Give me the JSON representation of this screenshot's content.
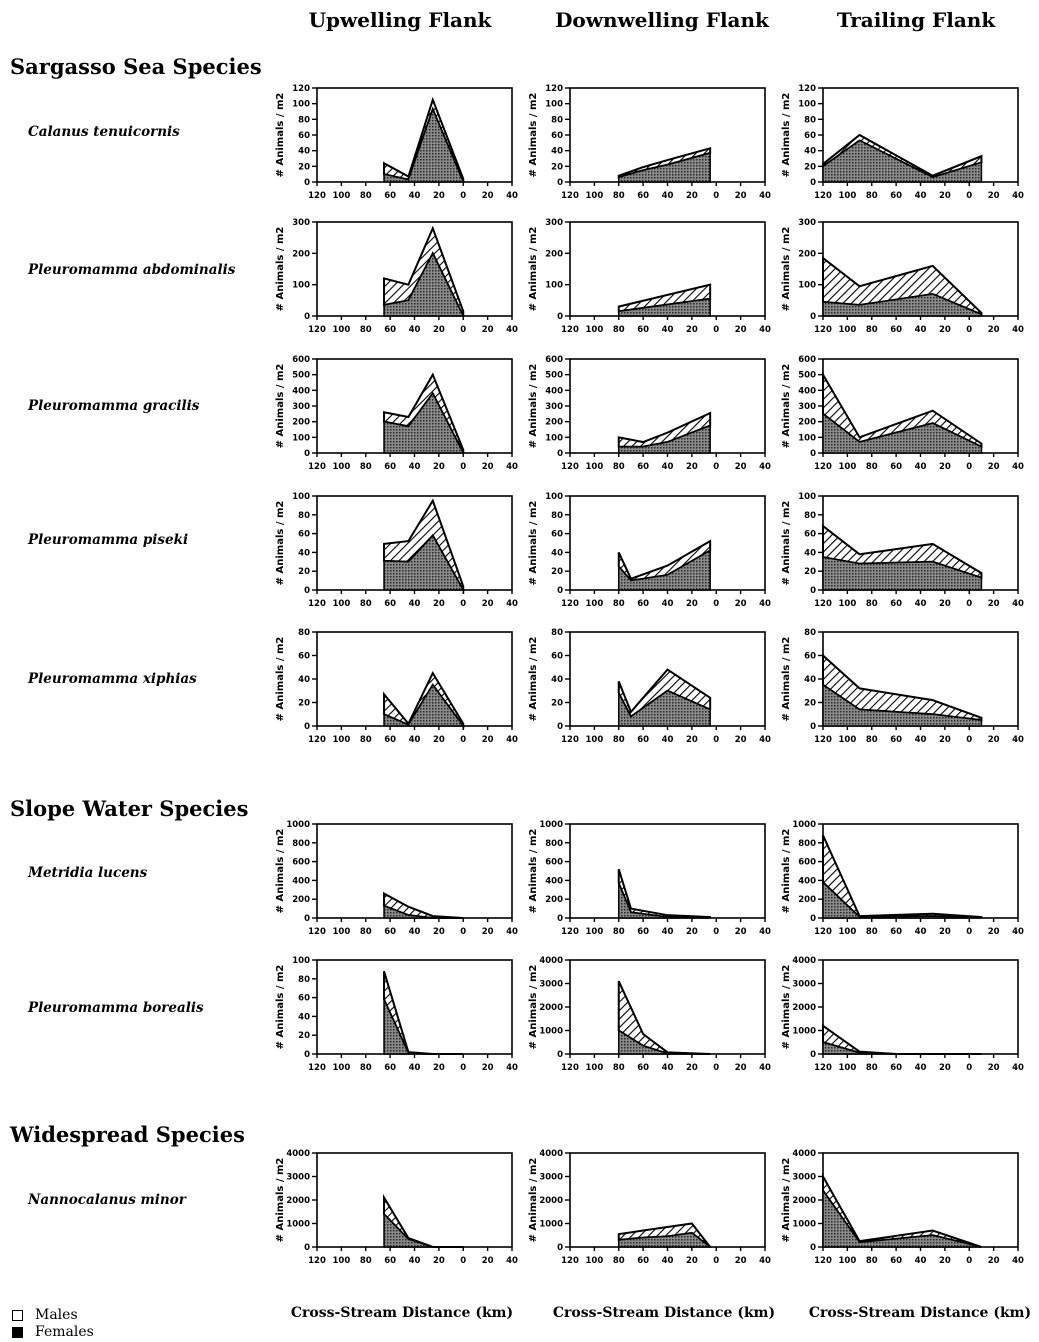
{
  "column_headers": [
    "Upwelling Flank",
    "Downwelling Flank",
    "Trailing Flank"
  ],
  "groups": [
    "Sargasso Sea Species",
    "Slope Water Species",
    "Widespread Species"
  ],
  "species": [
    "Calanus tenuicornis",
    "Pleuromamma abdominalis",
    "Pleuromamma gracilis",
    "Pleuromamma piseki",
    "Pleuromamma xiphias",
    "Metridia lucens",
    "Pleuromamma borealis",
    "Nannocalanus minor"
  ],
  "x_axis_label": "Cross-Stream Distance (km)",
  "y_axis_label": "# Animals / m2",
  "x_tick_labels": [
    "120",
    "100",
    "80",
    "60",
    "40",
    "20",
    "0",
    "20",
    "40"
  ],
  "legend": {
    "males": "Males",
    "females": "Females"
  },
  "colors": {
    "males_fill": "#ffffff",
    "females_fill": "#222222",
    "axis": "#000000"
  },
  "chart_data": [
    {
      "type": "area",
      "species": "Calanus tenuicornis",
      "flank": "Upwelling Flank",
      "ylim": [
        0,
        120
      ],
      "yticks": [
        0,
        20,
        40,
        60,
        80,
        100,
        120
      ],
      "series": [
        {
          "name": "Males",
          "x": [
            55,
            75,
            95,
            120
          ],
          "y": [
            14,
            4,
            12,
            4
          ]
        },
        {
          "name": "Females",
          "x": [
            55,
            75,
            95,
            120
          ],
          "y": [
            10,
            3,
            93,
            0
          ]
        }
      ]
    },
    {
      "type": "area",
      "species": "Calanus tenuicornis",
      "flank": "Downwelling Flank",
      "ylim": [
        0,
        120
      ],
      "yticks": [
        0,
        20,
        40,
        60,
        80,
        100,
        120
      ],
      "series": [
        {
          "name": "Males",
          "x": [
            40,
            60,
            80,
            115
          ],
          "y": [
            2,
            4,
            6,
            6
          ]
        },
        {
          "name": "Females",
          "x": [
            40,
            60,
            80,
            115
          ],
          "y": [
            6,
            15,
            22,
            37
          ]
        }
      ]
    },
    {
      "type": "area",
      "species": "Calanus tenuicornis",
      "flank": "Trailing Flank",
      "ylim": [
        0,
        120
      ],
      "yticks": [
        0,
        20,
        40,
        60,
        80,
        100,
        120
      ],
      "series": [
        {
          "name": "Males",
          "x": [
            0,
            30,
            90,
            130
          ],
          "y": [
            3,
            7,
            2,
            8
          ]
        },
        {
          "name": "Females",
          "x": [
            0,
            30,
            90,
            130
          ],
          "y": [
            20,
            53,
            6,
            25
          ]
        }
      ]
    },
    {
      "type": "area",
      "species": "Pleuromamma abdominalis",
      "flank": "Upwelling Flank",
      "ylim": [
        0,
        300
      ],
      "yticks": [
        0,
        100,
        200,
        300
      ],
      "series": [
        {
          "name": "Males",
          "x": [
            55,
            75,
            95,
            120
          ],
          "y": [
            85,
            50,
            80,
            15
          ]
        },
        {
          "name": "Females",
          "x": [
            55,
            75,
            95,
            120
          ],
          "y": [
            35,
            50,
            200,
            0
          ]
        }
      ]
    },
    {
      "type": "area",
      "species": "Pleuromamma abdominalis",
      "flank": "Downwelling Flank",
      "ylim": [
        0,
        300
      ],
      "yticks": [
        0,
        100,
        200,
        300
      ],
      "series": [
        {
          "name": "Males",
          "x": [
            40,
            115
          ],
          "y": [
            15,
            45
          ]
        },
        {
          "name": "Females",
          "x": [
            40,
            115
          ],
          "y": [
            15,
            55
          ]
        }
      ]
    },
    {
      "type": "area",
      "species": "Pleuromamma abdominalis",
      "flank": "Trailing Flank",
      "ylim": [
        0,
        300
      ],
      "yticks": [
        0,
        100,
        200,
        300
      ],
      "series": [
        {
          "name": "Males",
          "x": [
            0,
            30,
            90,
            130
          ],
          "y": [
            140,
            60,
            90,
            5
          ]
        },
        {
          "name": "Females",
          "x": [
            0,
            30,
            90,
            130
          ],
          "y": [
            45,
            35,
            70,
            5
          ]
        }
      ]
    },
    {
      "type": "area",
      "species": "Pleuromamma gracilis",
      "flank": "Upwelling Flank",
      "ylim": [
        0,
        600
      ],
      "yticks": [
        0,
        100,
        200,
        300,
        400,
        500,
        600
      ],
      "series": [
        {
          "name": "Males",
          "x": [
            55,
            75,
            95,
            120
          ],
          "y": [
            60,
            60,
            120,
            20
          ]
        },
        {
          "name": "Females",
          "x": [
            55,
            75,
            95,
            120
          ],
          "y": [
            200,
            170,
            380,
            0
          ]
        }
      ]
    },
    {
      "type": "area",
      "species": "Pleuromamma gracilis",
      "flank": "Downwelling Flank",
      "ylim": [
        0,
        600
      ],
      "yticks": [
        0,
        100,
        200,
        300,
        400,
        500,
        600
      ],
      "series": [
        {
          "name": "Males",
          "x": [
            40,
            60,
            80,
            115
          ],
          "y": [
            60,
            30,
            60,
            80
          ]
        },
        {
          "name": "Females",
          "x": [
            40,
            60,
            80,
            115
          ],
          "y": [
            40,
            40,
            70,
            175
          ]
        }
      ]
    },
    {
      "type": "area",
      "species": "Pleuromamma gracilis",
      "flank": "Trailing Flank",
      "ylim": [
        0,
        600
      ],
      "yticks": [
        0,
        100,
        200,
        300,
        400,
        500,
        600
      ],
      "series": [
        {
          "name": "Males",
          "x": [
            0,
            30,
            90,
            130
          ],
          "y": [
            250,
            30,
            80,
            20
          ]
        },
        {
          "name": "Females",
          "x": [
            0,
            30,
            90,
            130
          ],
          "y": [
            250,
            70,
            190,
            40
          ]
        }
      ]
    },
    {
      "type": "area",
      "species": "Pleuromamma piseki",
      "flank": "Upwelling Flank",
      "ylim": [
        0,
        100
      ],
      "yticks": [
        0,
        20,
        40,
        60,
        80,
        100
      ],
      "series": [
        {
          "name": "Males",
          "x": [
            55,
            75,
            95,
            120
          ],
          "y": [
            18,
            22,
            37,
            4
          ]
        },
        {
          "name": "Females",
          "x": [
            55,
            75,
            95,
            120
          ],
          "y": [
            31,
            30,
            58,
            0
          ]
        }
      ]
    },
    {
      "type": "area",
      "species": "Pleuromamma piseki",
      "flank": "Downwelling Flank",
      "ylim": [
        0,
        100
      ],
      "yticks": [
        0,
        20,
        40,
        60,
        80,
        100
      ],
      "series": [
        {
          "name": "Males",
          "x": [
            40,
            50,
            80,
            115
          ],
          "y": [
            15,
            2,
            10,
            10
          ]
        },
        {
          "name": "Females",
          "x": [
            40,
            50,
            80,
            115
          ],
          "y": [
            25,
            10,
            16,
            42
          ]
        }
      ]
    },
    {
      "type": "area",
      "species": "Pleuromamma piseki",
      "flank": "Trailing Flank",
      "ylim": [
        0,
        100
      ],
      "yticks": [
        0,
        20,
        40,
        60,
        80,
        100
      ],
      "series": [
        {
          "name": "Males",
          "x": [
            0,
            30,
            90,
            130
          ],
          "y": [
            33,
            10,
            19,
            5
          ]
        },
        {
          "name": "Females",
          "x": [
            0,
            30,
            90,
            130
          ],
          "y": [
            35,
            28,
            30,
            13
          ]
        }
      ]
    },
    {
      "type": "area",
      "species": "Pleuromamma xiphias",
      "flank": "Upwelling Flank",
      "ylim": [
        0,
        80
      ],
      "yticks": [
        0,
        20,
        40,
        60,
        80
      ],
      "series": [
        {
          "name": "Males",
          "x": [
            55,
            75,
            95,
            120
          ],
          "y": [
            17,
            1,
            10,
            2
          ]
        },
        {
          "name": "Females",
          "x": [
            55,
            75,
            95,
            120
          ],
          "y": [
            10,
            1,
            35,
            0
          ]
        }
      ]
    },
    {
      "type": "area",
      "species": "Pleuromamma xiphias",
      "flank": "Downwelling Flank",
      "ylim": [
        0,
        80
      ],
      "yticks": [
        0,
        20,
        40,
        60,
        80
      ],
      "series": [
        {
          "name": "Males",
          "x": [
            40,
            50,
            80,
            115
          ],
          "y": [
            10,
            4,
            18,
            10
          ]
        },
        {
          "name": "Females",
          "x": [
            40,
            50,
            80,
            115
          ],
          "y": [
            28,
            8,
            30,
            14
          ]
        }
      ]
    },
    {
      "type": "area",
      "species": "Pleuromamma xiphias",
      "flank": "Trailing Flank",
      "ylim": [
        0,
        80
      ],
      "yticks": [
        0,
        20,
        40,
        60,
        80
      ],
      "series": [
        {
          "name": "Males",
          "x": [
            0,
            30,
            90,
            130
          ],
          "y": [
            25,
            18,
            12,
            2
          ]
        },
        {
          "name": "Females",
          "x": [
            0,
            30,
            90,
            130
          ],
          "y": [
            35,
            14,
            10,
            5
          ]
        }
      ]
    },
    {
      "type": "area",
      "species": "Metridia lucens",
      "flank": "Upwelling Flank",
      "ylim": [
        0,
        1000
      ],
      "yticks": [
        0,
        200,
        400,
        600,
        800,
        1000
      ],
      "series": [
        {
          "name": "Males",
          "x": [
            55,
            75,
            95,
            120
          ],
          "y": [
            130,
            90,
            20,
            0
          ]
        },
        {
          "name": "Females",
          "x": [
            55,
            75,
            95,
            120
          ],
          "y": [
            130,
            30,
            0,
            0
          ]
        }
      ]
    },
    {
      "type": "area",
      "species": "Metridia lucens",
      "flank": "Downwelling Flank",
      "ylim": [
        0,
        1000
      ],
      "yticks": [
        0,
        200,
        400,
        600,
        800,
        1000
      ],
      "series": [
        {
          "name": "Males",
          "x": [
            40,
            50,
            80,
            115
          ],
          "y": [
            150,
            40,
            20,
            5
          ]
        },
        {
          "name": "Females",
          "x": [
            40,
            50,
            80,
            115
          ],
          "y": [
            370,
            60,
            10,
            5
          ]
        }
      ]
    },
    {
      "type": "area",
      "species": "Metridia lucens",
      "flank": "Trailing Flank",
      "ylim": [
        0,
        1000
      ],
      "yticks": [
        0,
        200,
        400,
        600,
        800,
        1000
      ],
      "series": [
        {
          "name": "Males",
          "x": [
            0,
            30,
            90,
            130
          ],
          "y": [
            500,
            10,
            25,
            5
          ]
        },
        {
          "name": "Females",
          "x": [
            0,
            30,
            90,
            130
          ],
          "y": [
            380,
            10,
            20,
            5
          ]
        }
      ]
    },
    {
      "type": "area",
      "species": "Pleuromamma borealis",
      "flank": "Upwelling Flank",
      "ylim": [
        0,
        100
      ],
      "yticks": [
        0,
        20,
        40,
        60,
        80,
        100
      ],
      "series": [
        {
          "name": "Males",
          "x": [
            55,
            75,
            95,
            120
          ],
          "y": [
            30,
            1,
            0,
            0
          ]
        },
        {
          "name": "Females",
          "x": [
            55,
            75,
            95,
            120
          ],
          "y": [
            58,
            1,
            0,
            0
          ]
        }
      ]
    },
    {
      "type": "area",
      "species": "Pleuromamma borealis",
      "flank": "Downwelling Flank",
      "ylim": [
        0,
        4000
      ],
      "yticks": [
        0,
        1000,
        2000,
        3000,
        4000
      ],
      "series": [
        {
          "name": "Males",
          "x": [
            40,
            60,
            80,
            115
          ],
          "y": [
            2100,
            500,
            50,
            0
          ]
        },
        {
          "name": "Females",
          "x": [
            40,
            60,
            80,
            115
          ],
          "y": [
            1000,
            350,
            20,
            0
          ]
        }
      ]
    },
    {
      "type": "area",
      "species": "Pleuromamma borealis",
      "flank": "Trailing Flank",
      "ylim": [
        0,
        4000
      ],
      "yticks": [
        0,
        1000,
        2000,
        3000,
        4000
      ],
      "series": [
        {
          "name": "Males",
          "x": [
            0,
            30,
            60,
            130
          ],
          "y": [
            700,
            50,
            0,
            0
          ]
        },
        {
          "name": "Females",
          "x": [
            0,
            30,
            60,
            130
          ],
          "y": [
            500,
            50,
            0,
            0
          ]
        }
      ]
    },
    {
      "type": "area",
      "species": "Nannocalanus minor",
      "flank": "Upwelling Flank",
      "ylim": [
        0,
        4000
      ],
      "yticks": [
        0,
        1000,
        2000,
        3000,
        4000
      ],
      "series": [
        {
          "name": "Males",
          "x": [
            55,
            75,
            95,
            120
          ],
          "y": [
            700,
            50,
            0,
            0
          ]
        },
        {
          "name": "Females",
          "x": [
            55,
            75,
            95,
            120
          ],
          "y": [
            1400,
            330,
            0,
            0
          ]
        }
      ]
    },
    {
      "type": "area",
      "species": "Nannocalanus minor",
      "flank": "Downwelling Flank",
      "ylim": [
        0,
        4000
      ],
      "yticks": [
        0,
        1000,
        2000,
        3000,
        4000
      ],
      "series": [
        {
          "name": "Males",
          "x": [
            40,
            60,
            80,
            100,
            115
          ],
          "y": [
            250,
            300,
            400,
            400,
            0
          ]
        },
        {
          "name": "Females",
          "x": [
            40,
            60,
            80,
            100,
            115
          ],
          "y": [
            300,
            400,
            450,
            600,
            0
          ]
        }
      ]
    },
    {
      "type": "area",
      "species": "Nannocalanus minor",
      "flank": "Trailing Flank",
      "ylim": [
        0,
        4000
      ],
      "yticks": [
        0,
        1000,
        2000,
        3000,
        4000
      ],
      "series": [
        {
          "name": "Males",
          "x": [
            0,
            30,
            90,
            130
          ],
          "y": [
            600,
            50,
            200,
            0
          ]
        },
        {
          "name": "Females",
          "x": [
            0,
            30,
            90,
            130
          ],
          "y": [
            2400,
            200,
            500,
            0
          ]
        }
      ]
    }
  ]
}
